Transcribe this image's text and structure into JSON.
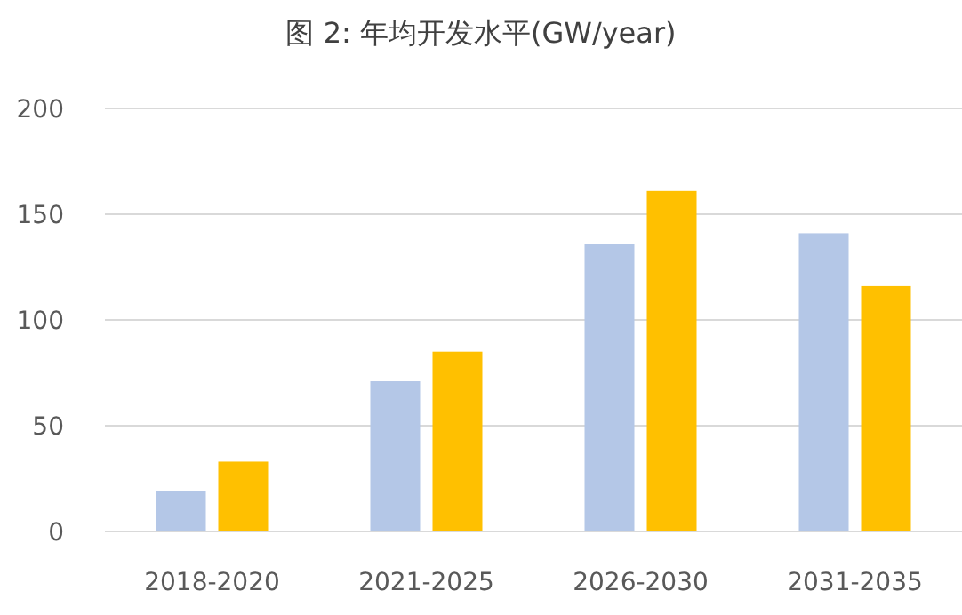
{
  "chart_data": {
    "type": "bar",
    "title": "图 2: 年均开发水平(GW/year)",
    "categories": [
      "2018-2020",
      "2021-2025",
      "2026-2030",
      "2031-2035"
    ],
    "series": [
      {
        "color": "#b4c7e7",
        "values": [
          19,
          71,
          136,
          141
        ]
      },
      {
        "color": "#ffc000",
        "values": [
          33,
          85,
          161,
          116
        ]
      }
    ],
    "ylim": [
      0,
      200
    ],
    "yticks": [
      0,
      50,
      100,
      150,
      200
    ],
    "grid": "y"
  }
}
